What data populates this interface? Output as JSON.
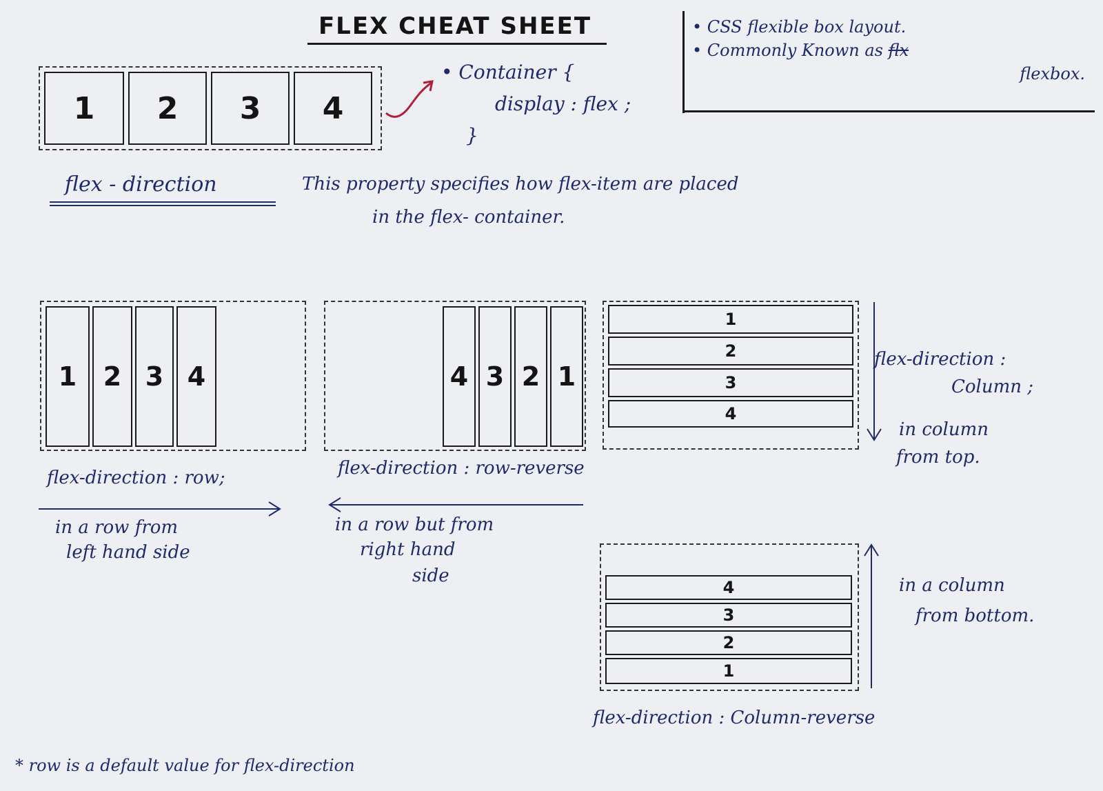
{
  "title": "FLEX CHEAT SHEET",
  "intro_items": [
    "1",
    "2",
    "3",
    "4"
  ],
  "container_code": {
    "line1": "• Container {",
    "line2": "display : flex ;",
    "line3": "}"
  },
  "info": {
    "line1": "• CSS flexible box layout.",
    "line2": "• Commonly Known as",
    "struck": "flx",
    "line3": "flexbox."
  },
  "definition": {
    "term": "flex - direction",
    "text1": "This property specifies how flex-item are placed",
    "text2": "in the flex- container."
  },
  "row": {
    "items": [
      "1",
      "2",
      "3",
      "4"
    ],
    "label": "flex-direction : row;",
    "desc1": "in a row from",
    "desc2": "left hand side"
  },
  "row_reverse": {
    "items": [
      "4",
      "3",
      "2",
      "1"
    ],
    "label": "flex-direction : row-reverse",
    "desc1": "in a row but from",
    "desc2": "right hand",
    "desc3": "side"
  },
  "column": {
    "items": [
      "1",
      "2",
      "3",
      "4"
    ],
    "label1": "flex-direction :",
    "label2": "Column ;",
    "desc1": "in column",
    "desc2": "from top."
  },
  "column_reverse": {
    "items": [
      "4",
      "3",
      "2",
      "1"
    ],
    "label": "flex-direction : Column-reverse",
    "desc1": "in a column",
    "desc2": "from bottom."
  },
  "footnote": "* row is a default value for flex-direction",
  "colors": {
    "ink_blue": "#1f2a6b",
    "ink_black": "#141414",
    "arrow_red": "#b0203a",
    "paper": "#eeeff3"
  }
}
